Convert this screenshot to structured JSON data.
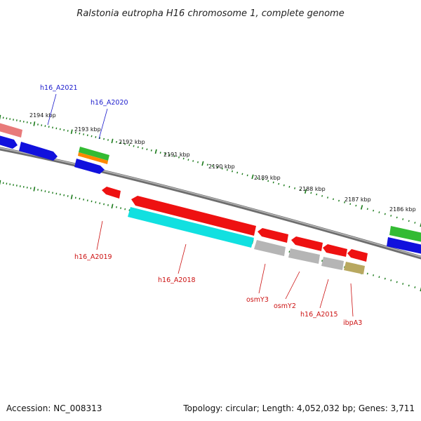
{
  "title": "Ralstonia eutropha H16 chromosome 1, complete genome",
  "footer": {
    "accession": "Accession: NC_008313",
    "summary": "Topology: circular; Length: 4,052,032 bp; Genes: 3,711"
  },
  "ticks": [
    "2194 kbp",
    "2193 kbp",
    "2192 kbp",
    "2191 kbp",
    "2190 kbp",
    "2189 kbp",
    "2188 kbp",
    "2187 kbp",
    "2186 kbp"
  ],
  "labels": {
    "forward": [
      "h16_A2021",
      "h16_A2020"
    ],
    "reverse": [
      "h16_A2019",
      "h16_A2018",
      "osmY3",
      "osmY2",
      "h16_A2015",
      "ibpA3"
    ]
  },
  "colors": {
    "forward_label": "#1a1acc",
    "reverse_label": "#cc1111",
    "backbone": "#8a8a8a",
    "tick": "#1a7a1a",
    "red": "#ee1111",
    "blue": "#1111dd",
    "green": "#33bb33",
    "orange": "#ff8800",
    "cyan": "#11e0e0",
    "grey": "#b5b5b5",
    "olive": "#b8a860",
    "pink": "#e87a7a"
  }
}
